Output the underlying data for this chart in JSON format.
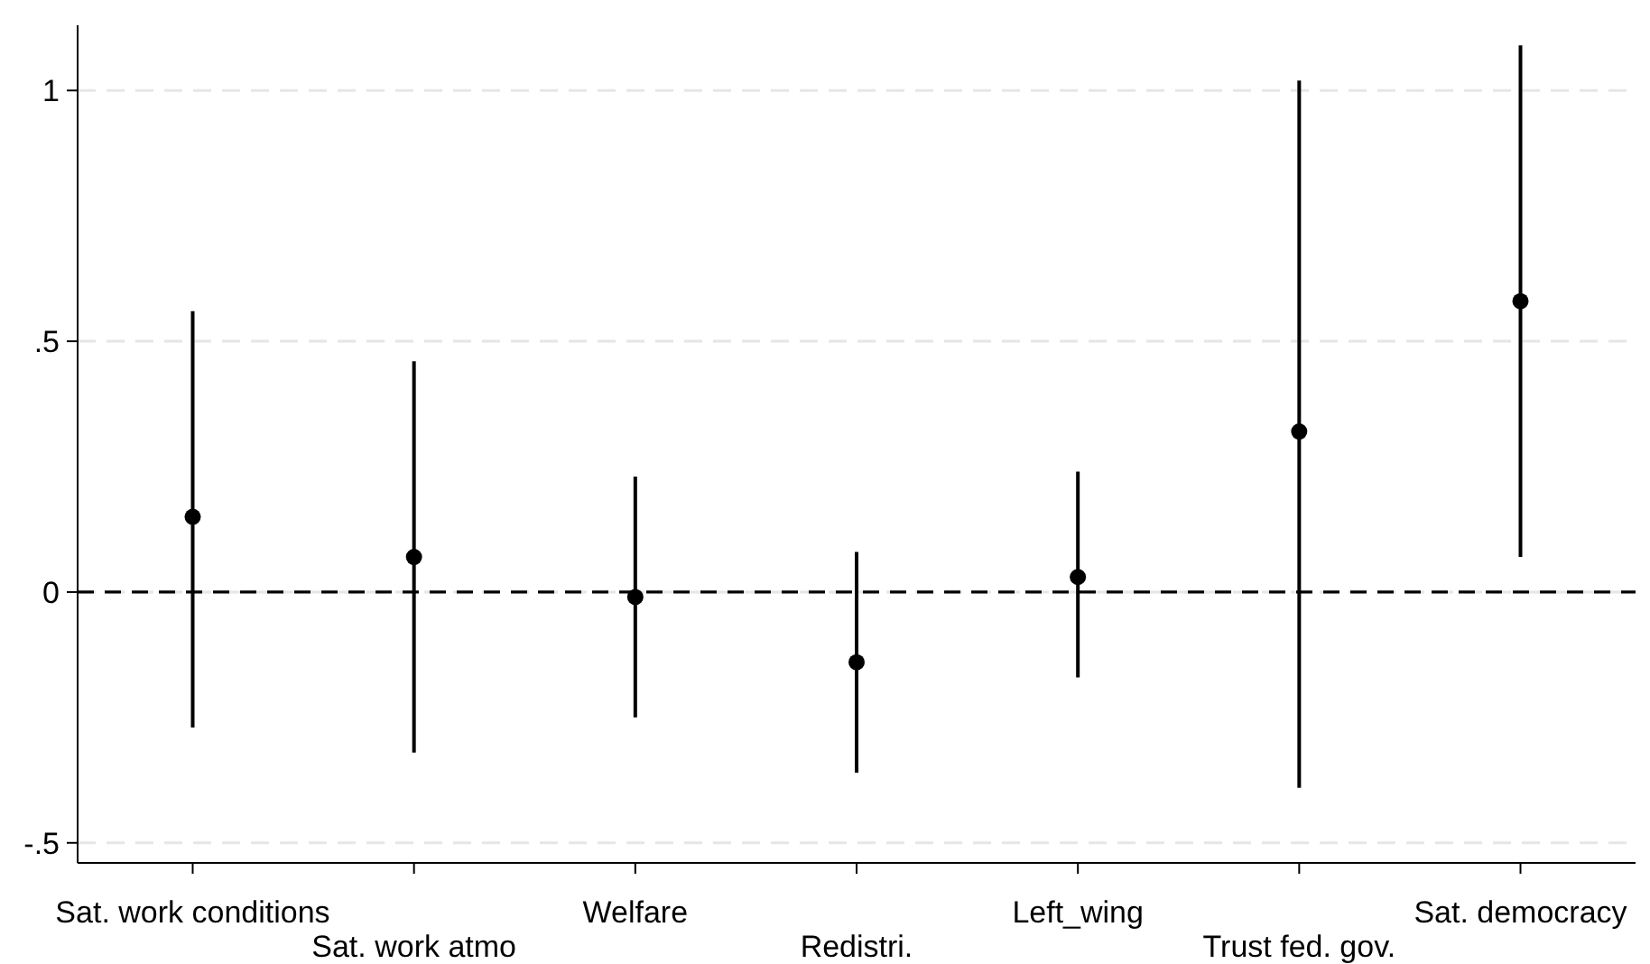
{
  "chart_data": {
    "type": "scatter",
    "categories": [
      "Sat. work conditions",
      "Sat. work atmo",
      "Welfare",
      "Redistri.",
      "Left_wing",
      "Trust fed. gov.",
      "Sat. democracy"
    ],
    "series": [
      {
        "color": "#000000",
        "values": [
          0.15,
          0.07,
          -0.01,
          -0.14,
          0.03,
          0.32,
          0.58
        ],
        "errors": [
          [
            -0.27,
            0.56
          ],
          [
            -0.32,
            0.46
          ],
          [
            -0.25,
            0.23
          ],
          [
            -0.36,
            0.08
          ],
          [
            -0.17,
            0.24
          ],
          [
            -0.39,
            1.02
          ],
          [
            0.07,
            1.09
          ]
        ]
      }
    ],
    "ylim": [
      -0.54,
      1.13
    ],
    "yticks": [
      {
        "value": -0.5,
        "label": "-.5"
      },
      {
        "value": 0,
        "label": "0"
      },
      {
        "value": 0.5,
        "label": ".5"
      },
      {
        "value": 1,
        "label": "1"
      }
    ],
    "grid": "y",
    "marker": "circle",
    "ref_lines": [
      {
        "axis": "y",
        "value": 0,
        "color": "#000000",
        "line_style": "dashed"
      }
    ]
  }
}
